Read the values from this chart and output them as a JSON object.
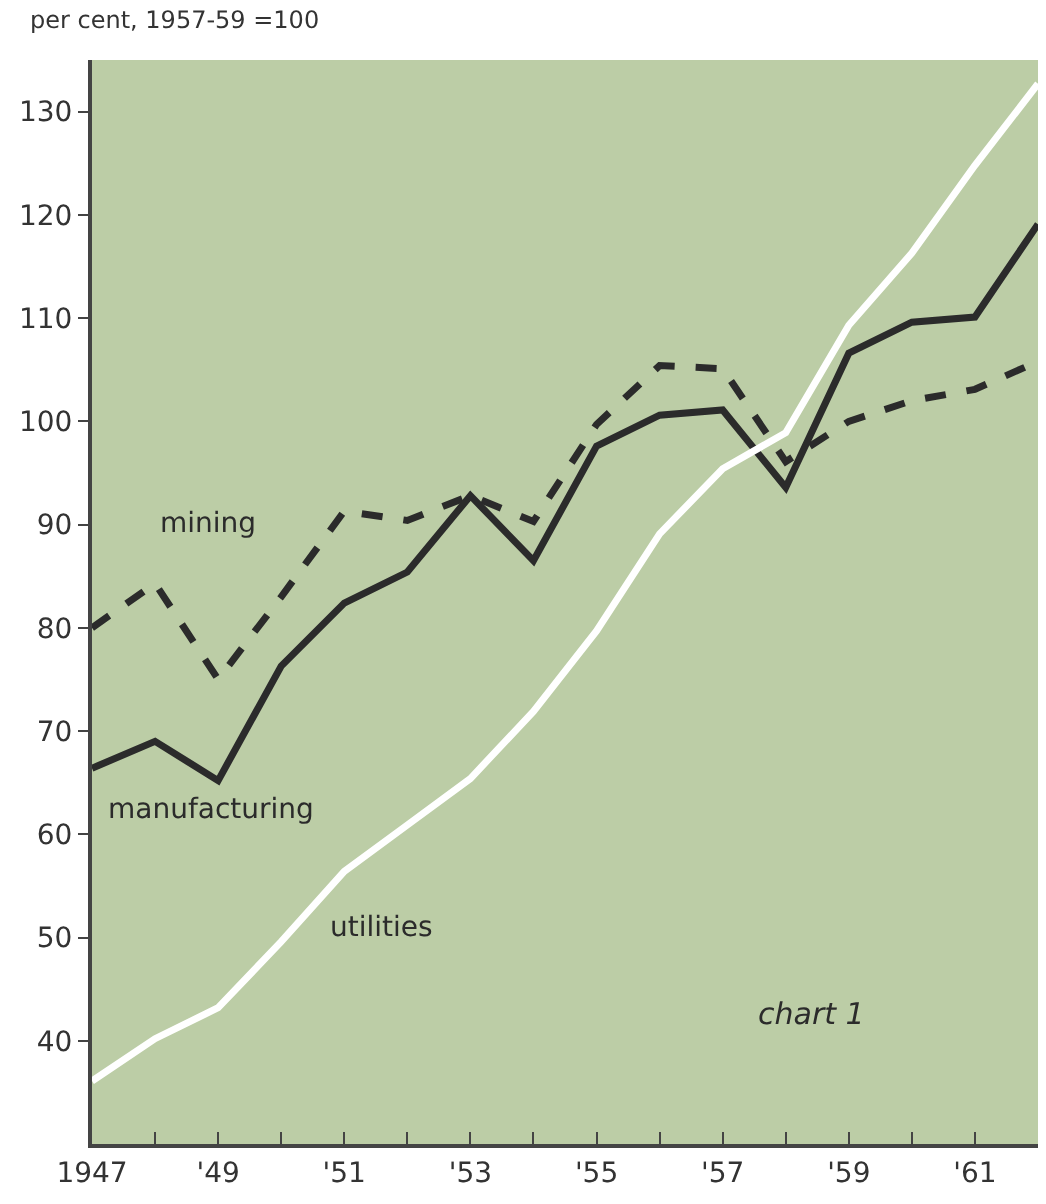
{
  "chart_data": {
    "type": "line",
    "ylabel": "per cent, 1957-59 =100",
    "x": [
      1947,
      1948,
      1949,
      1950,
      1951,
      1952,
      1953,
      1954,
      1955,
      1956,
      1957,
      1958,
      1959,
      1960,
      1961,
      1962
    ],
    "series": [
      {
        "name": "mining",
        "color": "#2b2b2b",
        "line_style": "dashed",
        "values": [
          80,
          84.3,
          75,
          83,
          91.3,
          90.4,
          92.8,
          90.3,
          99.7,
          105.4,
          105.1,
          96.1,
          100,
          102,
          103.1,
          105.8
        ]
      },
      {
        "name": "manufacturing",
        "color": "#2b2b2b",
        "line_style": "solid",
        "values": [
          66.4,
          69,
          65.2,
          76.3,
          82.4,
          85.4,
          92.8,
          86.5,
          97.6,
          100.6,
          101.1,
          93.6,
          106.6,
          109.6,
          110.1,
          119.1
        ]
      },
      {
        "name": "utilities",
        "color": "#ffffff",
        "line_style": "solid",
        "values": [
          36.1,
          40.2,
          43.2,
          49.6,
          56.4,
          60.9,
          65.4,
          71.9,
          79.7,
          89.1,
          95.4,
          98.9,
          109.3,
          116.3,
          124.8,
          132.7
        ]
      }
    ],
    "annotations": [
      "chart 1"
    ],
    "xlim": [
      1947,
      1962
    ],
    "xticks": [
      {
        "value": 1947,
        "label": "1947"
      },
      {
        "value": 1948,
        "label": null
      },
      {
        "value": 1949,
        "label": "'49"
      },
      {
        "value": 1950,
        "label": null
      },
      {
        "value": 1951,
        "label": "'51"
      },
      {
        "value": 1952,
        "label": null
      },
      {
        "value": 1953,
        "label": "'53"
      },
      {
        "value": 1954,
        "label": null
      },
      {
        "value": 1955,
        "label": "'55"
      },
      {
        "value": 1956,
        "label": null
      },
      {
        "value": 1957,
        "label": "'57"
      },
      {
        "value": 1958,
        "label": null
      },
      {
        "value": 1959,
        "label": "'59"
      },
      {
        "value": 1960,
        "label": null
      },
      {
        "value": 1961,
        "label": "'61"
      },
      {
        "value": 1962,
        "label": null
      }
    ],
    "ylim": [
      30,
      135
    ],
    "yticks": [
      40,
      50,
      60,
      70,
      80,
      90,
      100,
      110,
      120,
      130
    ],
    "grid": false,
    "legend": false,
    "marker": "none"
  }
}
